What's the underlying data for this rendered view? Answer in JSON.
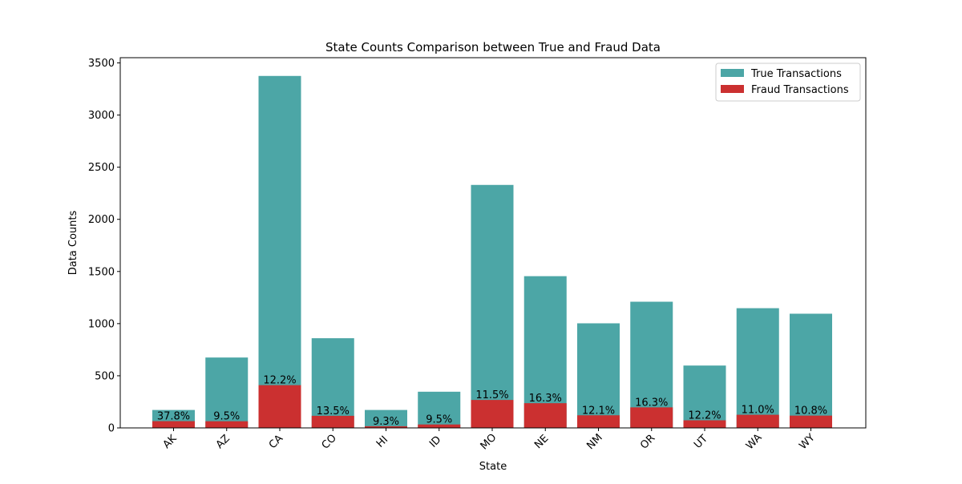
{
  "chart_data": {
    "type": "bar",
    "title": "State Counts Comparison between True and Fraud Data",
    "xlabel": "State",
    "ylabel": "Data Counts",
    "ylim": [
      0,
      3550
    ],
    "yticks": [
      0,
      500,
      1000,
      1500,
      2000,
      2500,
      3000,
      3500
    ],
    "categories": [
      "AK",
      "AZ",
      "CA",
      "CO",
      "HI",
      "ID",
      "MO",
      "NE",
      "NM",
      "OR",
      "UT",
      "WA",
      "WY"
    ],
    "series": [
      {
        "name": "True Transactions",
        "color": "#4ca6a6",
        "values": [
          172,
          675,
          3375,
          860,
          172,
          347,
          2330,
          1455,
          1003,
          1210,
          598,
          1148,
          1095
        ]
      },
      {
        "name": "Fraud Transactions",
        "color": "#cb3030",
        "values": [
          65,
          64,
          410,
          116,
          16,
          33,
          268,
          237,
          121,
          197,
          73,
          126,
          118
        ]
      }
    ],
    "bar_labels": [
      "37.8%",
      "9.5%",
      "12.2%",
      "13.5%",
      "9.3%",
      "9.5%",
      "11.5%",
      "16.3%",
      "12.1%",
      "16.3%",
      "12.2%",
      "11.0%",
      "10.8%"
    ],
    "legend_position": "top-right",
    "grid": false
  }
}
